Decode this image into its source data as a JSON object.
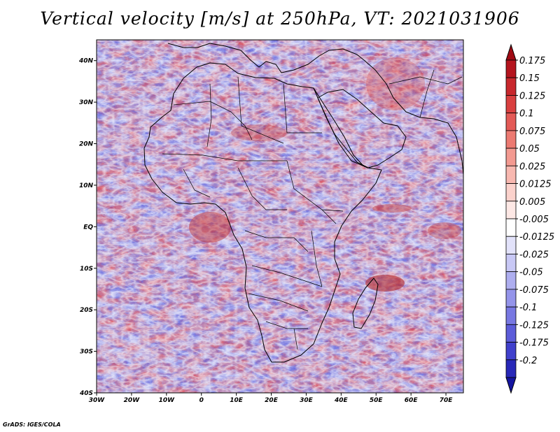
{
  "title": "Vertical velocity [m/s] at 250hPa, VT: 2021031906",
  "credit": "GrADS: IGES/COLA",
  "map": {
    "lon_range": [
      -30,
      75
    ],
    "lat_range": [
      -40,
      45
    ],
    "lon_ticks": [
      {
        "value": -30,
        "label": "30W"
      },
      {
        "value": -20,
        "label": "20W"
      },
      {
        "value": -10,
        "label": "10W"
      },
      {
        "value": 0,
        "label": "0"
      },
      {
        "value": 10,
        "label": "10E"
      },
      {
        "value": 20,
        "label": "20E"
      },
      {
        "value": 30,
        "label": "30E"
      },
      {
        "value": 40,
        "label": "40E"
      },
      {
        "value": 50,
        "label": "50E"
      },
      {
        "value": 60,
        "label": "60E"
      },
      {
        "value": 70,
        "label": "70E"
      }
    ],
    "lat_ticks": [
      {
        "value": 40,
        "label": "40N"
      },
      {
        "value": 30,
        "label": "30N"
      },
      {
        "value": 20,
        "label": "20N"
      },
      {
        "value": 10,
        "label": "10N"
      },
      {
        "value": 0,
        "label": "EQ"
      },
      {
        "value": -10,
        "label": "10S"
      },
      {
        "value": -20,
        "label": "20S"
      },
      {
        "value": -30,
        "label": "30S"
      },
      {
        "value": -40,
        "label": "40S"
      }
    ]
  },
  "colorbar": {
    "levels": [
      {
        "label": "0.175",
        "color": "#b4141e"
      },
      {
        "label": "0.15",
        "color": "#c8282d"
      },
      {
        "label": "0.125",
        "color": "#d94040"
      },
      {
        "label": "0.1",
        "color": "#e35a57"
      },
      {
        "label": "0.075",
        "color": "#ec7a72"
      },
      {
        "label": "0.05",
        "color": "#f39a91"
      },
      {
        "label": "0.025",
        "color": "#f8b8b0"
      },
      {
        "label": "0.0125",
        "color": "#fbd2cc"
      },
      {
        "label": "0.005",
        "color": "#fde8e5"
      },
      {
        "label": "-0.005",
        "color": "#ffffff"
      },
      {
        "label": "-0.0125",
        "color": "#e2e2fa"
      },
      {
        "label": "-0.025",
        "color": "#c8c8f5"
      },
      {
        "label": "-0.05",
        "color": "#aeaeef"
      },
      {
        "label": "-0.075",
        "color": "#9494ea"
      },
      {
        "label": "-0.1",
        "color": "#7878e2"
      },
      {
        "label": "-0.125",
        "color": "#5c5cd9"
      },
      {
        "label": "-0.175",
        "color": "#4040cc"
      },
      {
        "label": "-0.2",
        "color": "#2828b8"
      }
    ],
    "top_arrow_color": "#a00a14",
    "bottom_arrow_color": "#1414a0"
  }
}
